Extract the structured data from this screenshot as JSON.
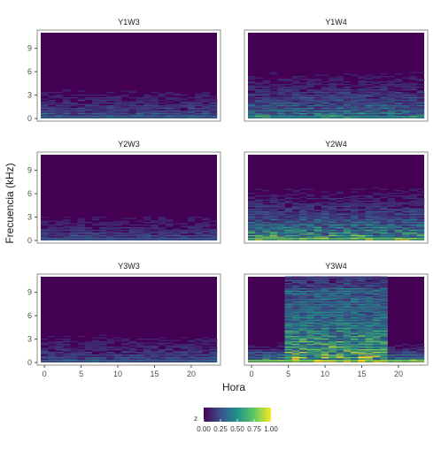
{
  "chart_data": {
    "type": "heatmap",
    "xlabel": "Hora",
    "ylabel": "Frecuencia (kHz)",
    "x_ticks": [
      0,
      5,
      10,
      15,
      20
    ],
    "y_ticks": [
      0,
      3,
      6,
      9
    ],
    "xlim": [
      -0.5,
      23.5
    ],
    "ylim": [
      0,
      11
    ],
    "legend": {
      "title": "z",
      "ticks": [
        "0.00",
        "0.25",
        "0.50",
        "0.75",
        "1.00"
      ],
      "placement": "bottom"
    },
    "colorscale": [
      "#440154",
      "#3b528b",
      "#21918c",
      "#5ec962",
      "#fde725"
    ],
    "panels": [
      {
        "name": "Y1W3",
        "row": 0,
        "col": 0,
        "intensity": 0.35,
        "spread": 0.18,
        "active_hours": [
          0,
          23
        ]
      },
      {
        "name": "Y1W4",
        "row": 0,
        "col": 1,
        "intensity": 0.55,
        "spread": 0.25,
        "active_hours": [
          0,
          23
        ]
      },
      {
        "name": "Y2W3",
        "row": 1,
        "col": 0,
        "intensity": 0.3,
        "spread": 0.16,
        "active_hours": [
          0,
          23
        ]
      },
      {
        "name": "Y2W4",
        "row": 1,
        "col": 1,
        "intensity": 0.75,
        "spread": 0.25,
        "active_hours": [
          0,
          23
        ]
      },
      {
        "name": "Y3W3",
        "row": 2,
        "col": 0,
        "intensity": 0.32,
        "spread": 0.18,
        "active_hours": [
          0,
          23
        ]
      },
      {
        "name": "Y3W4",
        "row": 2,
        "col": 1,
        "intensity": 0.85,
        "spread": 0.85,
        "active_hours": [
          5,
          18
        ]
      }
    ]
  }
}
